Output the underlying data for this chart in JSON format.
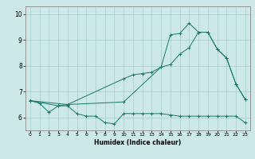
{
  "xlabel": "Humidex (Indice chaleur)",
  "ylabel": "",
  "bg_color": "#cce8e8",
  "grid_color": "#aacccc",
  "line_color": "#1a7a6a",
  "xlim": [
    -0.5,
    23.5
  ],
  "ylim": [
    5.5,
    10.3
  ],
  "xticks": [
    0,
    1,
    2,
    3,
    4,
    5,
    6,
    7,
    8,
    9,
    10,
    11,
    12,
    13,
    14,
    15,
    16,
    17,
    18,
    19,
    20,
    21,
    22,
    23
  ],
  "yticks": [
    6,
    7,
    8,
    9,
    10
  ],
  "line1_x": [
    0,
    1,
    2,
    3,
    4,
    5,
    6,
    7,
    8,
    9,
    10,
    11,
    12,
    13,
    14,
    15,
    16,
    17,
    18,
    19,
    20,
    21,
    22,
    23
  ],
  "line1_y": [
    6.65,
    6.55,
    6.2,
    6.45,
    6.45,
    6.15,
    6.05,
    6.05,
    5.8,
    5.75,
    6.15,
    6.15,
    6.15,
    6.15,
    6.15,
    6.1,
    6.05,
    6.05,
    6.05,
    6.05,
    6.05,
    6.05,
    6.05,
    5.8
  ],
  "line2_x": [
    0,
    3,
    4,
    10,
    11,
    12,
    13,
    14,
    15,
    16,
    17,
    18,
    19,
    20,
    21,
    22,
    23
  ],
  "line2_y": [
    6.65,
    6.45,
    6.5,
    7.5,
    7.65,
    7.7,
    7.75,
    7.95,
    9.2,
    9.25,
    9.65,
    9.3,
    9.3,
    8.65,
    8.3,
    7.3,
    6.7
  ],
  "line3_x": [
    0,
    4,
    10,
    14,
    15,
    16,
    17,
    18,
    19,
    20,
    21,
    22,
    23
  ],
  "line3_y": [
    6.65,
    6.5,
    6.6,
    7.95,
    8.05,
    8.45,
    8.7,
    9.3,
    9.3,
    8.65,
    8.3,
    7.3,
    6.7
  ]
}
